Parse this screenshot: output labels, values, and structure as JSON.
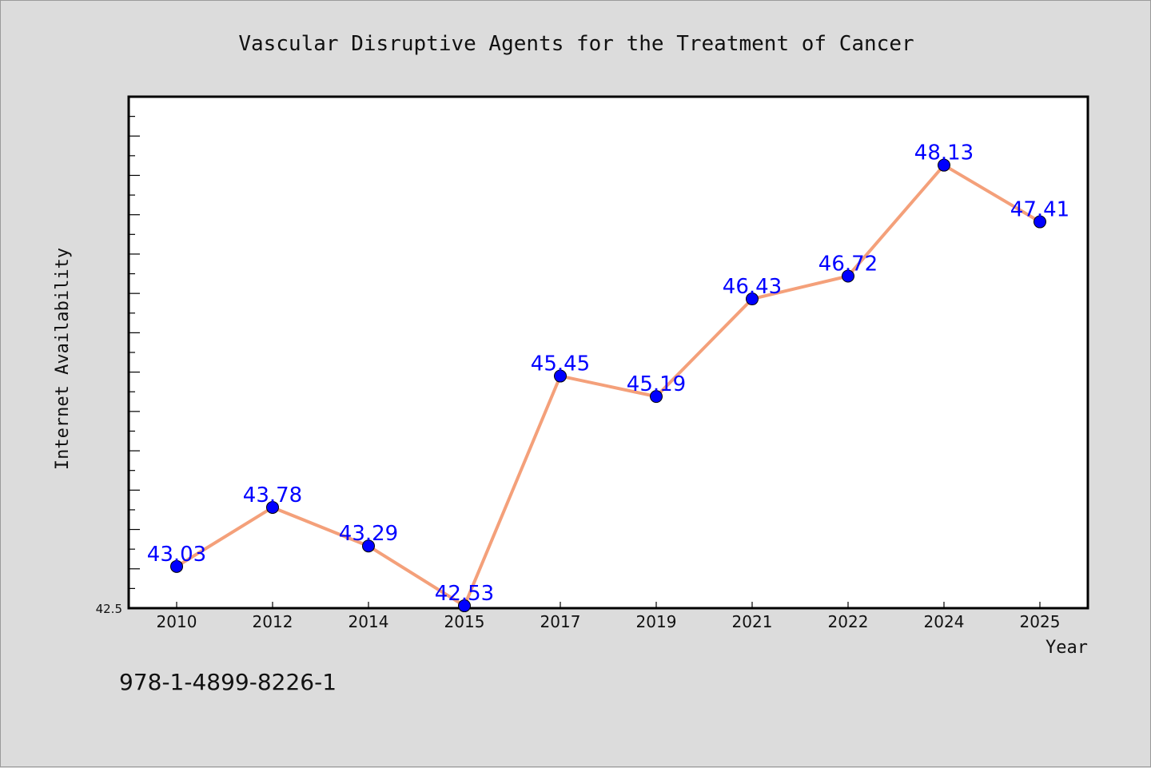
{
  "chart_data": {
    "type": "line",
    "title": "Vascular Disruptive Agents for the Treatment of Cancer",
    "xlabel": "Year",
    "ylabel": "Internet Availability",
    "categories": [
      "2010",
      "2012",
      "2014",
      "2015",
      "2017",
      "2019",
      "2021",
      "2022",
      "2024",
      "2025"
    ],
    "series": [
      {
        "values": [
          43.03,
          43.78,
          43.29,
          42.53,
          45.45,
          45.19,
          46.43,
          46.72,
          48.13,
          47.41
        ],
        "labels": [
          "43.03",
          "43.78",
          "43.29",
          "42.53",
          "45.45",
          "45.19",
          "46.43",
          "46.72",
          "48.13",
          "47.41"
        ]
      }
    ],
    "ylim": [
      42.5,
      49.0
    ],
    "ytick_labels": [
      "42.5"
    ],
    "grid": false,
    "line_color": "#f4a07a",
    "marker_color": "#0000ff",
    "label_color": "#0000ff"
  },
  "footer": {
    "isbn": "978-1-4899-8226-1"
  }
}
